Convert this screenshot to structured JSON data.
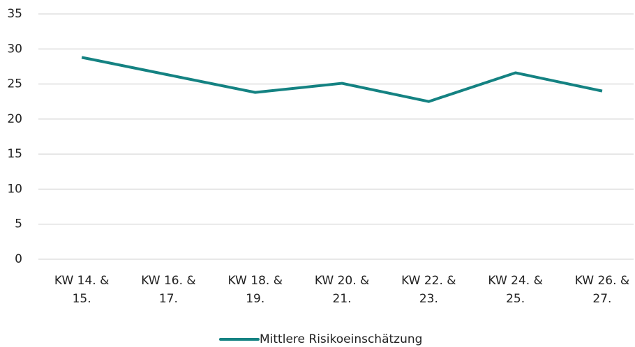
{
  "chart_data": {
    "type": "line",
    "categories": [
      "KW 14. & 15.",
      "KW 16. & 17.",
      "KW 18. & 19.",
      "KW 20. & 21.",
      "KW 22. & 23.",
      "KW 24. & 25.",
      "KW 26. & 27."
    ],
    "series": [
      {
        "name": "Mittlere Risikoeinschätzung",
        "color": "#148282",
        "values": [
          28.8,
          26.3,
          23.8,
          25.1,
          22.5,
          26.6,
          24.0
        ]
      }
    ],
    "ylim": [
      0,
      35
    ],
    "yticks": [
      0,
      5,
      10,
      15,
      20,
      25,
      30,
      35
    ],
    "grid": true,
    "legend": "bottom"
  }
}
